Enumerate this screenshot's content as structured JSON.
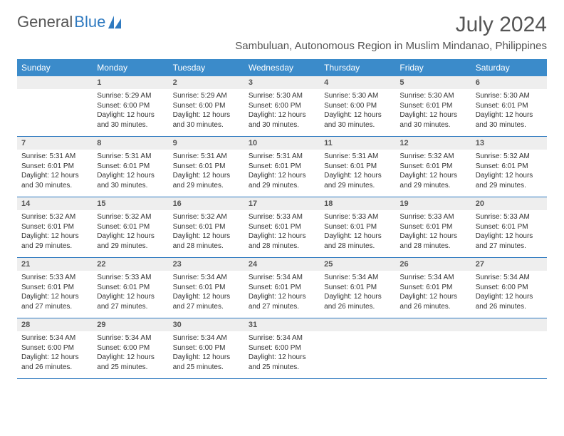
{
  "brand": {
    "word1": "General",
    "word2": "Blue"
  },
  "header": {
    "month_year": "July 2024",
    "location": "Sambuluan, Autonomous Region in Muslim Mindanao, Philippines"
  },
  "colors": {
    "header_bg": "#3b8bca",
    "header_text": "#ffffff",
    "daynum_bg": "#eeeeee",
    "border": "#2f7ac0",
    "brand_blue": "#2f7ac0",
    "text": "#333333",
    "title_text": "#555555"
  },
  "day_labels": [
    "Sunday",
    "Monday",
    "Tuesday",
    "Wednesday",
    "Thursday",
    "Friday",
    "Saturday"
  ],
  "weeks": [
    [
      {
        "day": "",
        "sunrise": "",
        "sunset": "",
        "daylight": ""
      },
      {
        "day": "1",
        "sunrise": "Sunrise: 5:29 AM",
        "sunset": "Sunset: 6:00 PM",
        "daylight": "Daylight: 12 hours and 30 minutes."
      },
      {
        "day": "2",
        "sunrise": "Sunrise: 5:29 AM",
        "sunset": "Sunset: 6:00 PM",
        "daylight": "Daylight: 12 hours and 30 minutes."
      },
      {
        "day": "3",
        "sunrise": "Sunrise: 5:30 AM",
        "sunset": "Sunset: 6:00 PM",
        "daylight": "Daylight: 12 hours and 30 minutes."
      },
      {
        "day": "4",
        "sunrise": "Sunrise: 5:30 AM",
        "sunset": "Sunset: 6:00 PM",
        "daylight": "Daylight: 12 hours and 30 minutes."
      },
      {
        "day": "5",
        "sunrise": "Sunrise: 5:30 AM",
        "sunset": "Sunset: 6:01 PM",
        "daylight": "Daylight: 12 hours and 30 minutes."
      },
      {
        "day": "6",
        "sunrise": "Sunrise: 5:30 AM",
        "sunset": "Sunset: 6:01 PM",
        "daylight": "Daylight: 12 hours and 30 minutes."
      }
    ],
    [
      {
        "day": "7",
        "sunrise": "Sunrise: 5:31 AM",
        "sunset": "Sunset: 6:01 PM",
        "daylight": "Daylight: 12 hours and 30 minutes."
      },
      {
        "day": "8",
        "sunrise": "Sunrise: 5:31 AM",
        "sunset": "Sunset: 6:01 PM",
        "daylight": "Daylight: 12 hours and 30 minutes."
      },
      {
        "day": "9",
        "sunrise": "Sunrise: 5:31 AM",
        "sunset": "Sunset: 6:01 PM",
        "daylight": "Daylight: 12 hours and 29 minutes."
      },
      {
        "day": "10",
        "sunrise": "Sunrise: 5:31 AM",
        "sunset": "Sunset: 6:01 PM",
        "daylight": "Daylight: 12 hours and 29 minutes."
      },
      {
        "day": "11",
        "sunrise": "Sunrise: 5:31 AM",
        "sunset": "Sunset: 6:01 PM",
        "daylight": "Daylight: 12 hours and 29 minutes."
      },
      {
        "day": "12",
        "sunrise": "Sunrise: 5:32 AM",
        "sunset": "Sunset: 6:01 PM",
        "daylight": "Daylight: 12 hours and 29 minutes."
      },
      {
        "day": "13",
        "sunrise": "Sunrise: 5:32 AM",
        "sunset": "Sunset: 6:01 PM",
        "daylight": "Daylight: 12 hours and 29 minutes."
      }
    ],
    [
      {
        "day": "14",
        "sunrise": "Sunrise: 5:32 AM",
        "sunset": "Sunset: 6:01 PM",
        "daylight": "Daylight: 12 hours and 29 minutes."
      },
      {
        "day": "15",
        "sunrise": "Sunrise: 5:32 AM",
        "sunset": "Sunset: 6:01 PM",
        "daylight": "Daylight: 12 hours and 29 minutes."
      },
      {
        "day": "16",
        "sunrise": "Sunrise: 5:32 AM",
        "sunset": "Sunset: 6:01 PM",
        "daylight": "Daylight: 12 hours and 28 minutes."
      },
      {
        "day": "17",
        "sunrise": "Sunrise: 5:33 AM",
        "sunset": "Sunset: 6:01 PM",
        "daylight": "Daylight: 12 hours and 28 minutes."
      },
      {
        "day": "18",
        "sunrise": "Sunrise: 5:33 AM",
        "sunset": "Sunset: 6:01 PM",
        "daylight": "Daylight: 12 hours and 28 minutes."
      },
      {
        "day": "19",
        "sunrise": "Sunrise: 5:33 AM",
        "sunset": "Sunset: 6:01 PM",
        "daylight": "Daylight: 12 hours and 28 minutes."
      },
      {
        "day": "20",
        "sunrise": "Sunrise: 5:33 AM",
        "sunset": "Sunset: 6:01 PM",
        "daylight": "Daylight: 12 hours and 27 minutes."
      }
    ],
    [
      {
        "day": "21",
        "sunrise": "Sunrise: 5:33 AM",
        "sunset": "Sunset: 6:01 PM",
        "daylight": "Daylight: 12 hours and 27 minutes."
      },
      {
        "day": "22",
        "sunrise": "Sunrise: 5:33 AM",
        "sunset": "Sunset: 6:01 PM",
        "daylight": "Daylight: 12 hours and 27 minutes."
      },
      {
        "day": "23",
        "sunrise": "Sunrise: 5:34 AM",
        "sunset": "Sunset: 6:01 PM",
        "daylight": "Daylight: 12 hours and 27 minutes."
      },
      {
        "day": "24",
        "sunrise": "Sunrise: 5:34 AM",
        "sunset": "Sunset: 6:01 PM",
        "daylight": "Daylight: 12 hours and 27 minutes."
      },
      {
        "day": "25",
        "sunrise": "Sunrise: 5:34 AM",
        "sunset": "Sunset: 6:01 PM",
        "daylight": "Daylight: 12 hours and 26 minutes."
      },
      {
        "day": "26",
        "sunrise": "Sunrise: 5:34 AM",
        "sunset": "Sunset: 6:01 PM",
        "daylight": "Daylight: 12 hours and 26 minutes."
      },
      {
        "day": "27",
        "sunrise": "Sunrise: 5:34 AM",
        "sunset": "Sunset: 6:00 PM",
        "daylight": "Daylight: 12 hours and 26 minutes."
      }
    ],
    [
      {
        "day": "28",
        "sunrise": "Sunrise: 5:34 AM",
        "sunset": "Sunset: 6:00 PM",
        "daylight": "Daylight: 12 hours and 26 minutes."
      },
      {
        "day": "29",
        "sunrise": "Sunrise: 5:34 AM",
        "sunset": "Sunset: 6:00 PM",
        "daylight": "Daylight: 12 hours and 25 minutes."
      },
      {
        "day": "30",
        "sunrise": "Sunrise: 5:34 AM",
        "sunset": "Sunset: 6:00 PM",
        "daylight": "Daylight: 12 hours and 25 minutes."
      },
      {
        "day": "31",
        "sunrise": "Sunrise: 5:34 AM",
        "sunset": "Sunset: 6:00 PM",
        "daylight": "Daylight: 12 hours and 25 minutes."
      },
      {
        "day": "",
        "sunrise": "",
        "sunset": "",
        "daylight": ""
      },
      {
        "day": "",
        "sunrise": "",
        "sunset": "",
        "daylight": ""
      },
      {
        "day": "",
        "sunrise": "",
        "sunset": "",
        "daylight": ""
      }
    ]
  ]
}
